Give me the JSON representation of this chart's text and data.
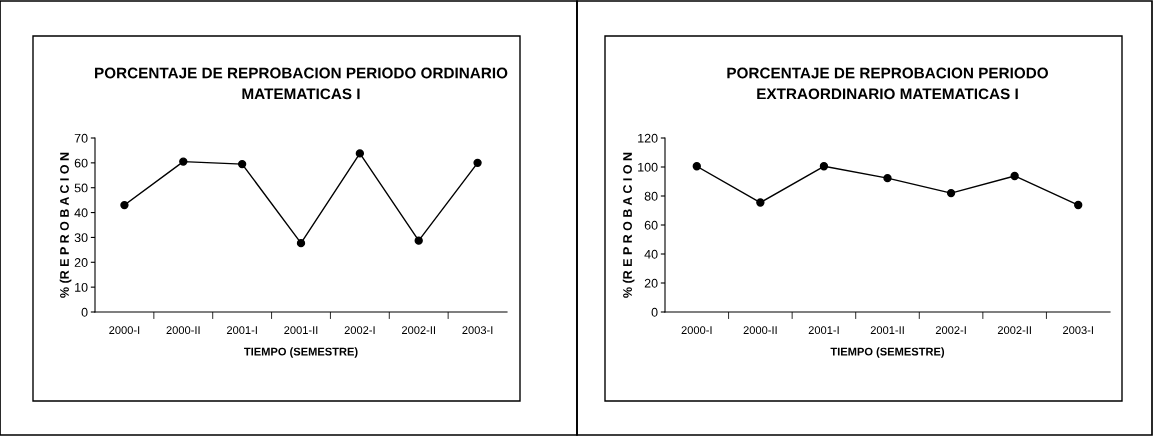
{
  "chart_data": [
    {
      "type": "line",
      "title": "PORCENTAJE DE REPROBACION PERIODO ORDINARIO\nMATEMATICAS I",
      "xlabel": "TIEMPO (SEMESTRE)",
      "ylabel": "% (R E P R O B A C I O N",
      "categories": [
        "2000-I",
        "2000-II",
        "2001-I",
        "2001-II",
        "2002-I",
        "2002-II",
        "2003-I"
      ],
      "series": [
        {
          "color": "#000000",
          "values": [
            43,
            60.5,
            59.5,
            27.7,
            63.8,
            28.7,
            60
          ]
        }
      ],
      "ylim": [
        0,
        70
      ],
      "yticks": [
        0,
        10,
        20,
        30,
        40,
        50,
        60,
        70
      ],
      "grid": false,
      "legend": false,
      "marker": "circle",
      "line_style": "solid"
    },
    {
      "type": "line",
      "title": "PORCENTAJE DE REPROBACION PERIODO\nEXTRAORDINARIO MATEMATICAS I",
      "xlabel": "TIEMPO (SEMESTRE)",
      "ylabel": "% (R E P R O B A C I O N",
      "categories": [
        "2000-I",
        "2000-II",
        "2001-I",
        "2001-II",
        "2002-I",
        "2002-II",
        "2003-I"
      ],
      "series": [
        {
          "color": "#000000",
          "values": [
            100.5,
            75.5,
            100.5,
            92.3,
            82,
            93.8,
            73.8
          ]
        }
      ],
      "ylim": [
        0,
        120
      ],
      "yticks": [
        0,
        20,
        40,
        60,
        80,
        100,
        120
      ],
      "grid": false,
      "legend": false,
      "marker": "circle",
      "line_style": "solid"
    }
  ]
}
